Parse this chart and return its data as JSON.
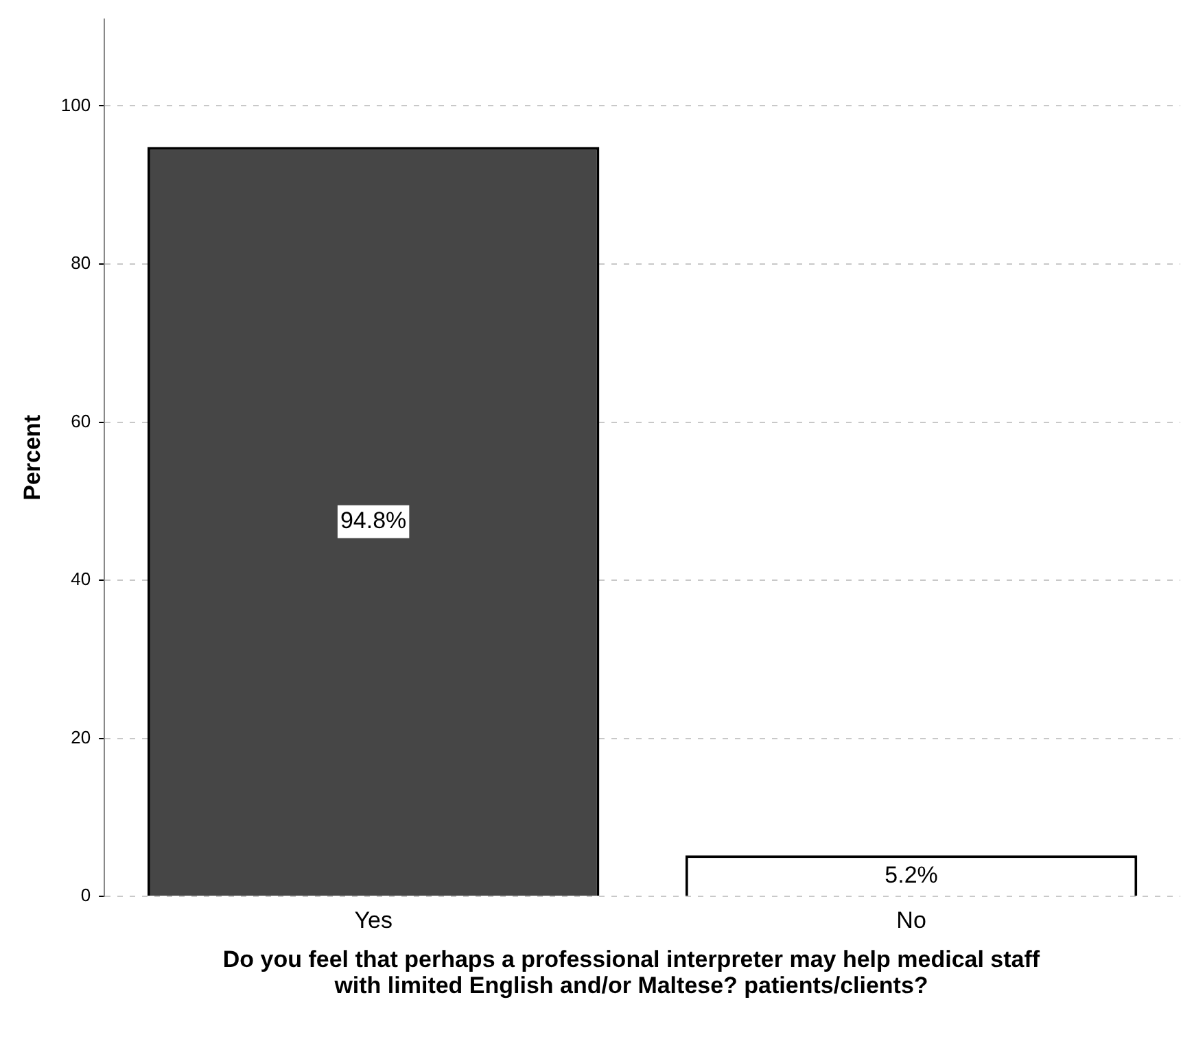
{
  "chart_data": {
    "type": "bar",
    "xlabel": "Do you feel that perhaps a professional interpreter may help medical staff with limited English and/or Maltese? patients/clients?",
    "ylabel": "Percent",
    "categories": [
      "Yes",
      "No"
    ],
    "values": [
      94.8,
      5.2
    ],
    "colors": [
      "#464646",
      "#ffffff"
    ],
    "value_labels": [
      "94.8%",
      "5.2%"
    ],
    "ylim": [
      0,
      111
    ],
    "yticks": [
      0,
      20,
      40,
      60,
      80,
      100
    ],
    "grid": "y",
    "legend": false
  }
}
